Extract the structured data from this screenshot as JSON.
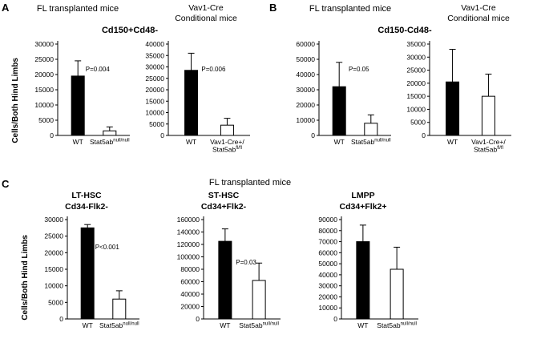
{
  "figure": {
    "panels": {
      "a": {
        "label": "A",
        "title_fl": "FL transplanted mice",
        "title_vav_lines": [
          "Vav1-Cre",
          "Conditional mice"
        ],
        "subtitle": "Cd150+Cd48-",
        "ylabel": "Cells/Both Hind Limbs"
      },
      "b": {
        "label": "B",
        "title_fl": "FL transplanted mice",
        "title_vav_lines": [
          "Vav1-Cre",
          "Conditional mice"
        ],
        "subtitle": "Cd150-Cd48-"
      },
      "c": {
        "label": "C",
        "title": "FL transplanted mice",
        "ylabel": "Cells/Both Hind Limbs"
      }
    }
  },
  "chart_data": [
    {
      "type": "bar",
      "id": "A-FL-transplanted",
      "panel": "A",
      "group": "FL transplanted mice",
      "subtitle": "Cd150+Cd48-",
      "ylabel": "Cells/Both Hind Limbs",
      "ylim": [
        0,
        30000
      ],
      "ytick": 5000,
      "p_label": "P=0.004",
      "categories": [
        "WT",
        "Stat5ab null/null"
      ],
      "bars": [
        {
          "label_lines": [
            [
              {
                "t": "WT"
              }
            ]
          ],
          "value": 19500,
          "error": 5000,
          "fill": "#000000"
        },
        {
          "label_lines": [
            [
              {
                "t": "Stat5ab"
              },
              {
                "t": "null/null",
                "sup": true
              }
            ]
          ],
          "value": 1500,
          "error": 1300,
          "fill": "#ffffff"
        }
      ]
    },
    {
      "type": "bar",
      "id": "A-Vav1-Cre-conditional",
      "panel": "A",
      "group": "Vav1-Cre Conditional mice",
      "subtitle": "Cd150+Cd48-",
      "ylim": [
        0,
        40000
      ],
      "ytick": 5000,
      "p_label": "P=0.006",
      "categories": [
        "WT",
        "Vav1-Cre+/ Stat5ab fl/fl"
      ],
      "bars": [
        {
          "label_lines": [
            [
              {
                "t": "WT"
              }
            ]
          ],
          "value": 28500,
          "error": 7500,
          "fill": "#000000"
        },
        {
          "label_lines": [
            [
              {
                "t": "Vav1-Cre+/"
              }
            ],
            [
              {
                "t": "Stat5ab"
              },
              {
                "t": "fl/fl",
                "sup": true
              }
            ]
          ],
          "value": 4500,
          "error": 3000,
          "fill": "#ffffff"
        }
      ]
    },
    {
      "type": "bar",
      "id": "B-FL-transplanted",
      "panel": "B",
      "group": "FL transplanted mice",
      "subtitle": "Cd150-Cd48-",
      "ylim": [
        0,
        60000
      ],
      "ytick": 10000,
      "p_label": "P=0.05",
      "categories": [
        "WT",
        "Stat5ab null/null"
      ],
      "bars": [
        {
          "label_lines": [
            [
              {
                "t": "WT"
              }
            ]
          ],
          "value": 32000,
          "error": 16000,
          "fill": "#000000"
        },
        {
          "label_lines": [
            [
              {
                "t": "Stat5ab"
              },
              {
                "t": "null/null",
                "sup": true
              }
            ]
          ],
          "value": 8000,
          "error": 5500,
          "fill": "#ffffff"
        }
      ]
    },
    {
      "type": "bar",
      "id": "B-Vav1-Cre-conditional",
      "panel": "B",
      "group": "Vav1-Cre Conditional mice",
      "subtitle": "Cd150-Cd48-",
      "ylim": [
        0,
        35000
      ],
      "ytick": 5000,
      "p_label": null,
      "categories": [
        "WT",
        "Vav1-Cre+/ Stat5ab fl/fl"
      ],
      "bars": [
        {
          "label_lines": [
            [
              {
                "t": "WT"
              }
            ]
          ],
          "value": 20500,
          "error": 12500,
          "fill": "#000000"
        },
        {
          "label_lines": [
            [
              {
                "t": "Vav1-Cre+/"
              }
            ],
            [
              {
                "t": "Stat5ab"
              },
              {
                "t": "fl/fl",
                "sup": true
              }
            ]
          ],
          "value": 15000,
          "error": 8500,
          "fill": "#ffffff"
        }
      ]
    },
    {
      "type": "bar",
      "id": "C-LT-HSC",
      "panel": "C",
      "group": "FL transplanted mice",
      "subtitle_lines": [
        "LT-HSC",
        "Cd34-Flk2-"
      ],
      "ylabel": "Cells/Both Hind Limbs",
      "ylim": [
        0,
        30000
      ],
      "ytick": 5000,
      "p_label": "P<0.001",
      "categories": [
        "WT",
        "Stat5ab null/null"
      ],
      "bars": [
        {
          "label_lines": [
            [
              {
                "t": "WT"
              }
            ]
          ],
          "value": 27500,
          "error": 1000,
          "fill": "#000000"
        },
        {
          "label_lines": [
            [
              {
                "t": "Stat5ab"
              },
              {
                "t": "null/null",
                "sup": true
              }
            ]
          ],
          "value": 6000,
          "error": 2500,
          "fill": "#ffffff"
        }
      ]
    },
    {
      "type": "bar",
      "id": "C-ST-HSC",
      "panel": "C",
      "group": "FL transplanted mice",
      "subtitle_lines": [
        "ST-HSC",
        "Cd34+Flk2-"
      ],
      "ylim": [
        0,
        160000
      ],
      "ytick": 20000,
      "p_label": "P=0.03",
      "p_frac": 0.45,
      "categories": [
        "WT",
        "Stat5ab null/null"
      ],
      "bars": [
        {
          "label_lines": [
            [
              {
                "t": "WT"
              }
            ]
          ],
          "value": 125000,
          "error": 20000,
          "fill": "#000000"
        },
        {
          "label_lines": [
            [
              {
                "t": "Stat5ab"
              },
              {
                "t": "null/null",
                "sup": true
              }
            ]
          ],
          "value": 62000,
          "error": 28000,
          "fill": "#ffffff"
        }
      ]
    },
    {
      "type": "bar",
      "id": "C-LMPP",
      "panel": "C",
      "group": "FL transplanted mice",
      "subtitle_lines": [
        "LMPP",
        "Cd34+Flk2+"
      ],
      "ylim": [
        0,
        90000
      ],
      "ytick": 10000,
      "p_label": null,
      "categories": [
        "WT",
        "Stat5ab null/null"
      ],
      "bars": [
        {
          "label_lines": [
            [
              {
                "t": "WT"
              }
            ]
          ],
          "value": 70000,
          "error": 15000,
          "fill": "#000000"
        },
        {
          "label_lines": [
            [
              {
                "t": "Stat5ab"
              },
              {
                "t": "null/null",
                "sup": true
              }
            ]
          ],
          "value": 45000,
          "error": 20000,
          "fill": "#ffffff"
        }
      ]
    }
  ]
}
